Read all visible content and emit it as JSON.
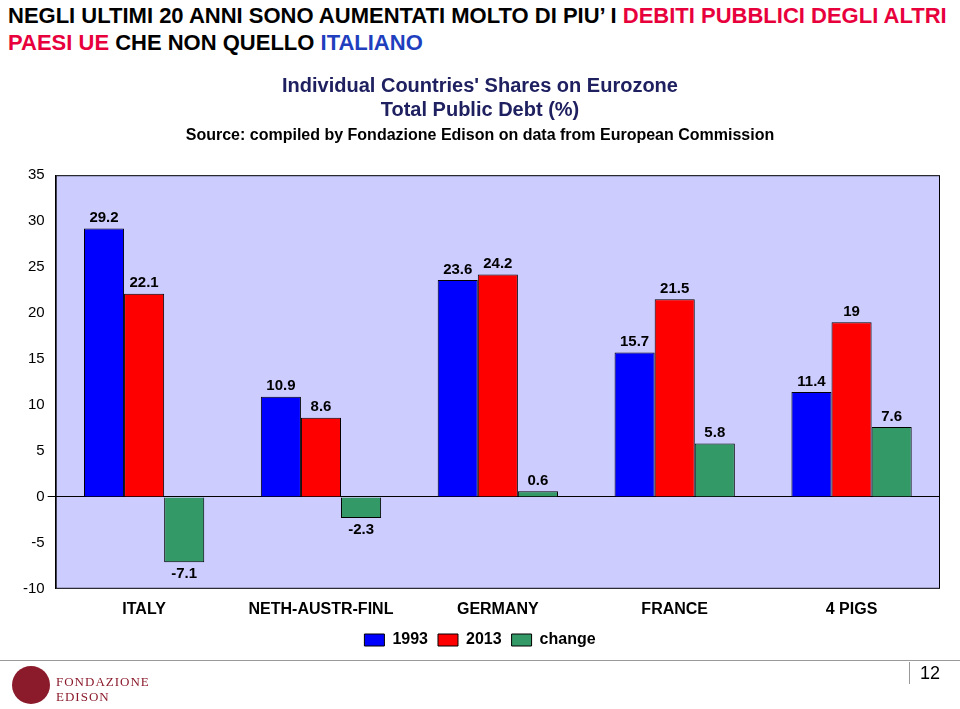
{
  "header": {
    "segments": [
      {
        "text": "NEGLI ULTIMI 20 ANNI SONO AUMENTATI MOLTO DI PIU’ I ",
        "color": "#000000"
      },
      {
        "text": "DEBITI PUBBLICI DEGLI ALTRI PAESI UE",
        "color": "#e8003d"
      },
      {
        "text": " CHE NON QUELLO ",
        "color": "#000000"
      },
      {
        "text": "ITALIANO",
        "color": "#1f3fbf"
      }
    ]
  },
  "chart_data": {
    "type": "bar",
    "title": [
      "Individual Countries' Shares on Eurozone",
      "Total Public Debt (%)"
    ],
    "subtitle": "Source: compiled by Fondazione Edison on data from European Commission",
    "categories": [
      "ITALY",
      "NETH-AUSTR-FINL",
      "GERMANY",
      "FRANCE",
      "4 PIGS"
    ],
    "series": [
      {
        "name": "1993",
        "color": "#0000ff",
        "values": [
          29.2,
          10.9,
          23.6,
          15.7,
          11.4
        ]
      },
      {
        "name": "2013",
        "color": "#ff0000",
        "values": [
          22.1,
          8.6,
          24.2,
          21.5,
          19
        ]
      },
      {
        "name": "change",
        "color": "#339966",
        "values": [
          -7.1,
          -2.3,
          0.6,
          5.8,
          7.6
        ]
      }
    ],
    "ylim": [
      -10,
      35
    ],
    "yticks": [
      -10,
      -5,
      0,
      5,
      10,
      15,
      20,
      25,
      30,
      35
    ],
    "grid": false,
    "legend": "bottom",
    "data_labels": true
  },
  "footer": {
    "logo": [
      "FONDAZIONE",
      "EDISON"
    ],
    "page": "12"
  }
}
